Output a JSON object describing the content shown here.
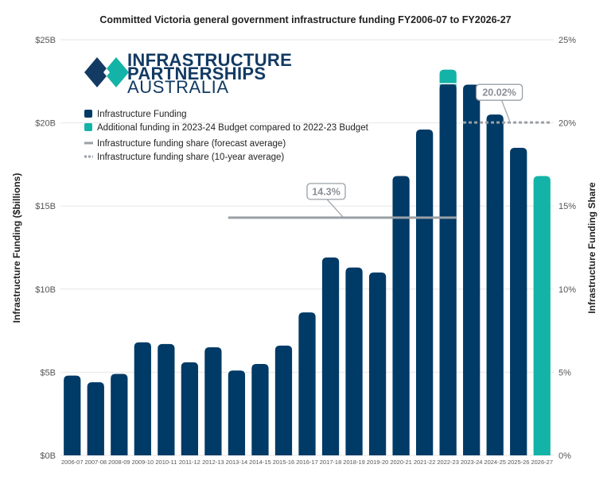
{
  "colors": {
    "bar": "#003a66",
    "additional": "#14b3a7",
    "forecast_line": "#9aa0a6",
    "avg_line": "#9aa0a6",
    "grid": "#e6e6e6"
  },
  "logo": {
    "line1": "INFRASTRUCTURE",
    "line2": "PARTNERSHIPS",
    "line3": "AUSTRALIA"
  },
  "chart_data": {
    "type": "bar",
    "title": "Committed Victoria general government infrastructure funding FY2006-07 to FY2026-27",
    "ylabel": "Infrastructure Funding ($billions)",
    "y2label": "Infrastructure Funding Share",
    "ylim": [
      0,
      25
    ],
    "y2lim": [
      0,
      25
    ],
    "yticks": [
      "$0B",
      "$5B",
      "$10B",
      "$15B",
      "$20B",
      "$25B"
    ],
    "y2ticks": [
      "0%",
      "5%",
      "10%",
      "15%",
      "20%",
      "25%"
    ],
    "grid": true,
    "legend_position": "top-left",
    "categories": [
      "2006-07",
      "2007-08",
      "2008-09",
      "2009-10",
      "2010-11",
      "2011-12",
      "2012-13",
      "2013-14",
      "2014-15",
      "2015-16",
      "2016-17",
      "2017-18",
      "2018-19",
      "2019-20",
      "2020-21",
      "2021-22",
      "2022-23",
      "2023-24",
      "2024-25",
      "2025-26",
      "2026-27"
    ],
    "series": [
      {
        "name": "Infrastructure Funding",
        "values": [
          4.8,
          4.4,
          4.9,
          6.8,
          6.7,
          5.6,
          6.5,
          5.1,
          5.5,
          6.6,
          8.6,
          11.9,
          11.3,
          11.0,
          16.8,
          19.6,
          22.4,
          22.3,
          20.5,
          18.5,
          0
        ]
      },
      {
        "name": "Additional funding in 2023-24 Budget compared to 2022-23 Budget",
        "values": [
          0,
          0,
          0,
          0,
          0,
          0,
          0,
          0,
          0,
          0,
          0,
          0,
          0,
          0,
          0,
          0,
          0.8,
          0,
          0,
          0,
          16.8
        ]
      }
    ],
    "lines": [
      {
        "name": "Infrastructure funding share (forecast average)",
        "value": 14.3,
        "label": "14.3%",
        "from": "2013-14",
        "to": "2022-23"
      },
      {
        "name": "Infrastructure funding share (10-year average)",
        "value": 20.02,
        "label": "20.02%",
        "from": "2023-24",
        "to": "2026-27"
      }
    ]
  }
}
